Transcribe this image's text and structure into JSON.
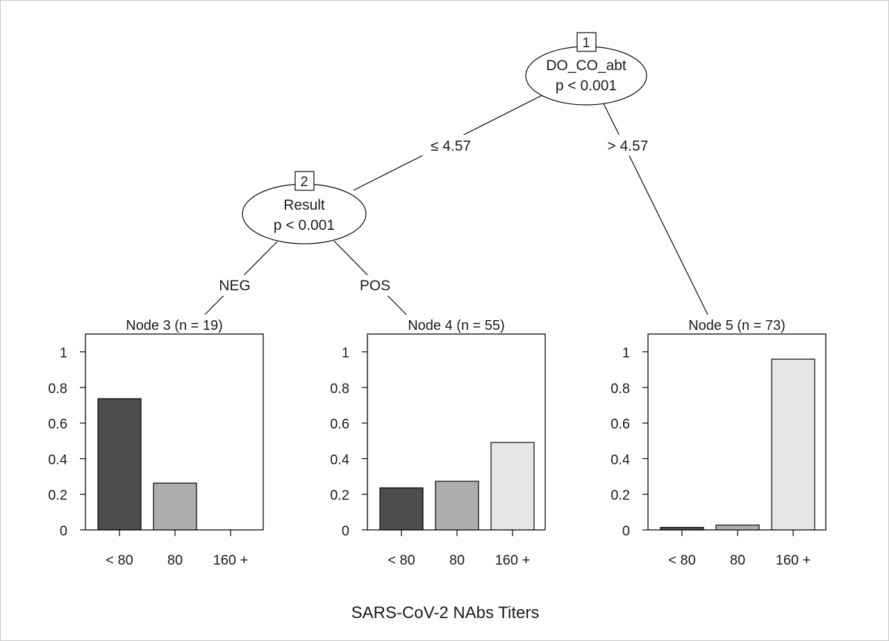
{
  "inner_nodes": [
    {
      "id": "1",
      "variable": "DO_CO_abt",
      "pvalue": "p < 0.001"
    },
    {
      "id": "2",
      "variable": "Result",
      "pvalue": "p < 0.001"
    }
  ],
  "edge_labels": {
    "node1_left": "≤ 4.57",
    "node1_right": "> 4.57",
    "node2_left": "NEG",
    "node2_right": "POS"
  },
  "terminal_nodes": [
    {
      "title": "Node 3 (n = 19)"
    },
    {
      "title": "Node 4 (n = 55)"
    },
    {
      "title": "Node 5 (n = 73)"
    }
  ],
  "caption": "SARS-CoV-2 NAbs Titers",
  "chart_data": {
    "type": "bar",
    "categories": [
      "< 80",
      "80",
      "160 +"
    ],
    "yticks": [
      "0",
      "0.2",
      "0.4",
      "0.6",
      "0.8",
      "1"
    ],
    "ylim": [
      0,
      1.1
    ],
    "category_colors": [
      "#4d4d4d",
      "#aeaeae",
      "#e6e6e6"
    ],
    "panels": [
      {
        "title": "Node 3 (n = 19)",
        "values": [
          0.737,
          0.263,
          0.0
        ]
      },
      {
        "title": "Node 4 (n = 55)",
        "values": [
          0.236,
          0.273,
          0.491
        ]
      },
      {
        "title": "Node 5 (n = 73)",
        "values": [
          0.014,
          0.027,
          0.959
        ]
      }
    ]
  }
}
